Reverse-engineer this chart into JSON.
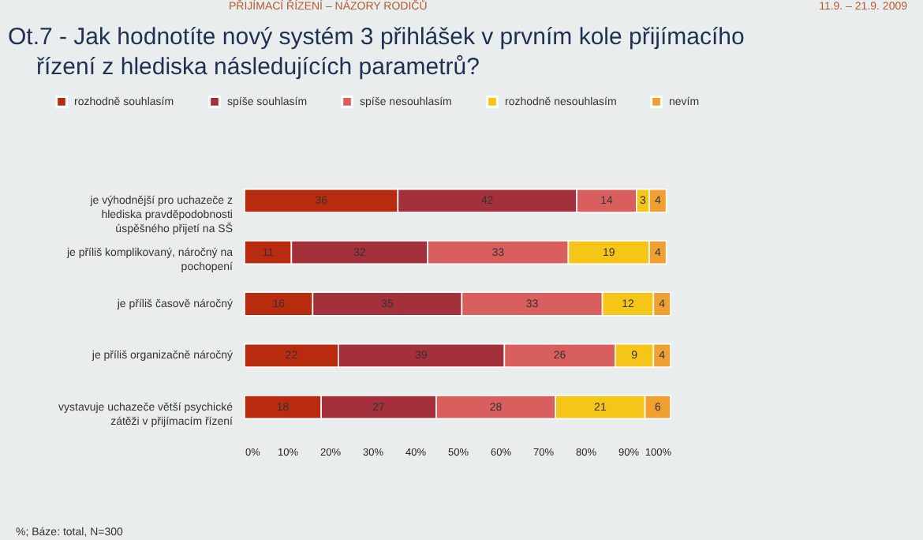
{
  "chart_data": {
    "type": "bar",
    "orientation": "horizontal",
    "stacked": true,
    "title": "Ot.7 - Jak hodnotíte nový systém 3 přihlášek v prvním kole přijímacího řízení z hlediska následujících parametrů?",
    "annotations": [
      "PŘIJÍMACÍ ŘÍZENÍ – NÁZORY RODIČŮ",
      "11.9. – 21.9. 2009",
      "%; Báze: total, N=300"
    ],
    "categories": [
      "je výhodnější pro uchazeče z hlediska pravděpodobnosti úspěšného přijetí na SŠ",
      "je příliš komplikovaný, náročný na pochopení",
      "je příliš časově náročný",
      "je příliš organizačně náročný",
      "vystavuje uchazeče větší psychické zátěži v přijímacím řízení"
    ],
    "series": [
      {
        "name": "rozhodně souhlasím",
        "color": "#b92b0e",
        "values": [
          36,
          11,
          16,
          22,
          18
        ]
      },
      {
        "name": "spíše souhlasím",
        "color": "#a3303a",
        "values": [
          42,
          32,
          35,
          39,
          27
        ]
      },
      {
        "name": "spíše nesouhlasím",
        "color": "#d95f5f",
        "values": [
          14,
          33,
          33,
          26,
          28
        ]
      },
      {
        "name": "rozhodně nesouhlasím",
        "color": "#f5c518",
        "values": [
          3,
          19,
          12,
          9,
          21
        ]
      },
      {
        "name": "nevím",
        "color": "#f0a030",
        "values": [
          4,
          4,
          4,
          4,
          6
        ]
      }
    ],
    "xlim": [
      0,
      100
    ],
    "xticks": [
      {
        "value": 0,
        "label": "0%"
      },
      {
        "value": 10,
        "label": "10%"
      },
      {
        "value": 20,
        "label": "20%"
      },
      {
        "value": 30,
        "label": "30%"
      },
      {
        "value": 40,
        "label": "40%"
      },
      {
        "value": 50,
        "label": "50%"
      },
      {
        "value": 60,
        "label": "60%"
      },
      {
        "value": 70,
        "label": "70%"
      },
      {
        "value": 80,
        "label": "80%"
      },
      {
        "value": 90,
        "label": "90%"
      },
      {
        "value": 100,
        "label": "100%"
      }
    ],
    "data_labels": true,
    "legend": "top"
  }
}
